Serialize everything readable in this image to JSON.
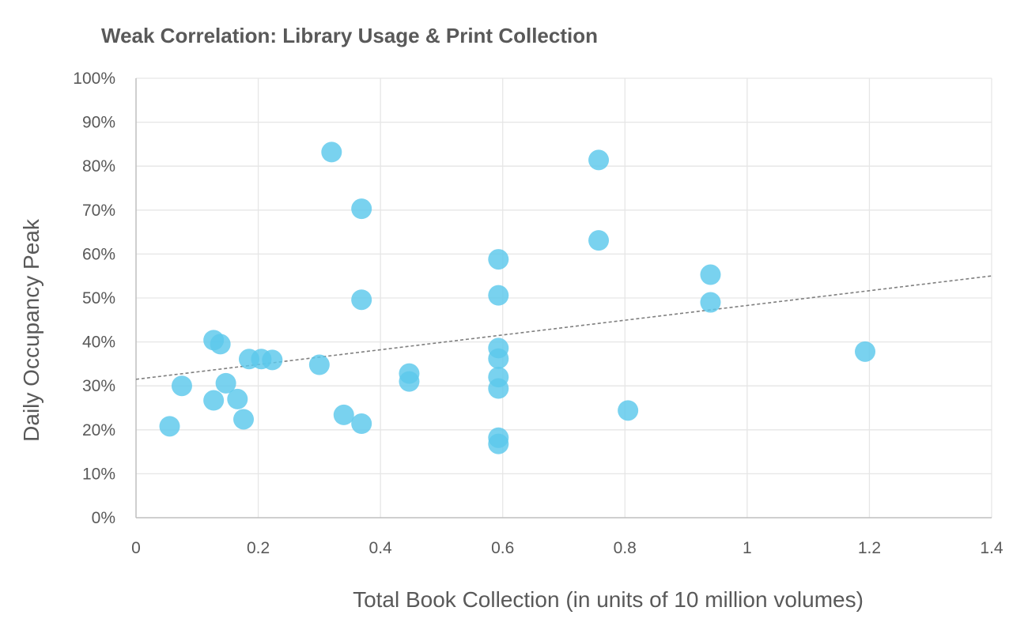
{
  "chart_data": {
    "type": "scatter",
    "title": "Weak Correlation: Library Usage & Print Collection",
    "xlabel": "Total Book Collection (in units of 10 million volumes)",
    "ylabel": "Daily Occupancy Peak",
    "xlim": [
      0,
      1.4
    ],
    "ylim": [
      0,
      1.0
    ],
    "x_ticks": [
      0,
      0.2,
      0.4,
      0.6,
      0.8,
      1,
      1.2,
      1.4
    ],
    "x_tick_labels": [
      "0",
      "0.2",
      "0.4",
      "0.6",
      "0.8",
      "1",
      "1.2",
      "1.4"
    ],
    "y_ticks": [
      0,
      0.1,
      0.2,
      0.3,
      0.4,
      0.5,
      0.6,
      0.7,
      0.8,
      0.9,
      1.0
    ],
    "y_tick_labels": [
      "0%",
      "10%",
      "20%",
      "30%",
      "40%",
      "50%",
      "60%",
      "70%",
      "80%",
      "90%",
      "100%"
    ],
    "grid": true,
    "marker_color": "#5BC8EC",
    "trendline_color": "#7F7F7F",
    "trendline": {
      "type": "linear",
      "intercept": 0.315,
      "slope": 0.168
    },
    "points": [
      {
        "x": 0.055,
        "y": 0.208
      },
      {
        "x": 0.075,
        "y": 0.3
      },
      {
        "x": 0.127,
        "y": 0.404
      },
      {
        "x": 0.138,
        "y": 0.395
      },
      {
        "x": 0.127,
        "y": 0.267
      },
      {
        "x": 0.147,
        "y": 0.306
      },
      {
        "x": 0.166,
        "y": 0.27
      },
      {
        "x": 0.176,
        "y": 0.224
      },
      {
        "x": 0.185,
        "y": 0.361
      },
      {
        "x": 0.205,
        "y": 0.361
      },
      {
        "x": 0.223,
        "y": 0.359
      },
      {
        "x": 0.3,
        "y": 0.348
      },
      {
        "x": 0.32,
        "y": 0.832
      },
      {
        "x": 0.34,
        "y": 0.234
      },
      {
        "x": 0.369,
        "y": 0.703
      },
      {
        "x": 0.369,
        "y": 0.496
      },
      {
        "x": 0.369,
        "y": 0.214
      },
      {
        "x": 0.447,
        "y": 0.328
      },
      {
        "x": 0.447,
        "y": 0.31
      },
      {
        "x": 0.593,
        "y": 0.588
      },
      {
        "x": 0.593,
        "y": 0.506
      },
      {
        "x": 0.593,
        "y": 0.386
      },
      {
        "x": 0.593,
        "y": 0.362
      },
      {
        "x": 0.593,
        "y": 0.32
      },
      {
        "x": 0.593,
        "y": 0.294
      },
      {
        "x": 0.593,
        "y": 0.182
      },
      {
        "x": 0.593,
        "y": 0.168
      },
      {
        "x": 0.757,
        "y": 0.814
      },
      {
        "x": 0.757,
        "y": 0.631
      },
      {
        "x": 0.805,
        "y": 0.244
      },
      {
        "x": 0.94,
        "y": 0.553
      },
      {
        "x": 0.94,
        "y": 0.49
      },
      {
        "x": 1.193,
        "y": 0.378
      }
    ]
  }
}
